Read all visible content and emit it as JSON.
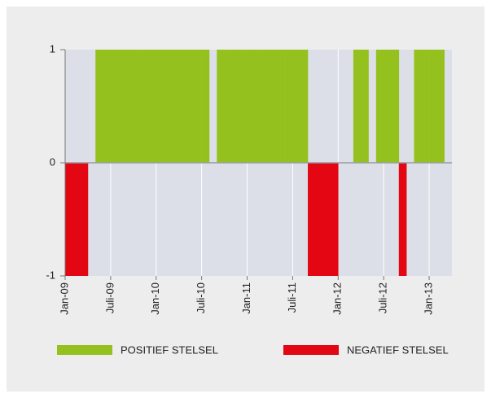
{
  "chart_data": {
    "type": "bar",
    "categories": [
      "Jan-09",
      null,
      null,
      null,
      null,
      null,
      "Juli-09",
      null,
      null,
      null,
      null,
      null,
      "Jan-10",
      null,
      null,
      null,
      null,
      null,
      "Juli-10",
      null,
      null,
      null,
      null,
      null,
      "Jan-11",
      null,
      null,
      null,
      null,
      null,
      "Juli-11",
      null,
      null,
      null,
      null,
      null,
      "Jan-12",
      null,
      null,
      null,
      null,
      null,
      "Juli-12",
      null,
      null,
      null,
      null,
      null,
      "Jan-13",
      null,
      null
    ],
    "series": [
      {
        "name": "POSITIEF STELSEL",
        "color": "#95c11f",
        "values": [
          0,
          0,
          0,
          0,
          1,
          1,
          1,
          1,
          1,
          1,
          1,
          1,
          1,
          1,
          1,
          1,
          1,
          1,
          1,
          0,
          1,
          1,
          1,
          1,
          1,
          1,
          1,
          1,
          1,
          1,
          1,
          1,
          0,
          0,
          0,
          0,
          0,
          0,
          1,
          1,
          0,
          1,
          1,
          1,
          0,
          0,
          1,
          1,
          1,
          1,
          0
        ]
      },
      {
        "name": "NEGATIEF STELSEL",
        "color": "#e30613",
        "values": [
          -1,
          -1,
          -1,
          0,
          0,
          0,
          0,
          0,
          0,
          0,
          0,
          0,
          0,
          0,
          0,
          0,
          0,
          0,
          0,
          0,
          0,
          0,
          0,
          0,
          0,
          0,
          0,
          0,
          0,
          0,
          0,
          0,
          -1,
          -1,
          -1,
          -1,
          0,
          0,
          0,
          0,
          0,
          0,
          0,
          0,
          -1,
          0,
          0,
          0,
          0,
          0,
          0
        ]
      }
    ],
    "ylim": [
      -1,
      1
    ],
    "yticks": [
      -1,
      0,
      1
    ],
    "grid": true
  }
}
